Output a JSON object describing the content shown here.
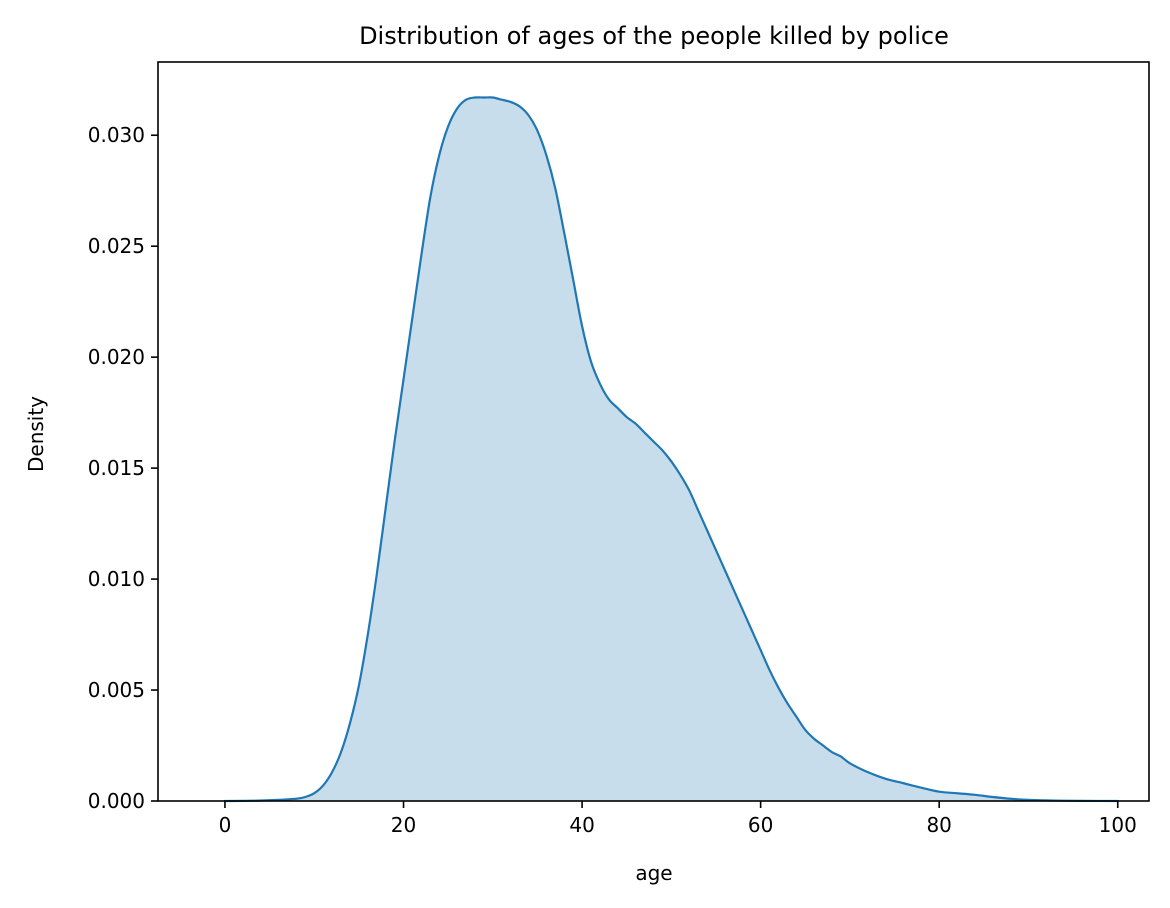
{
  "chart_data": {
    "type": "area",
    "title": "Distribution of ages of the people killed by police",
    "xlabel": "age",
    "ylabel": "Density",
    "xlim": [
      -7.5,
      103.5
    ],
    "ylim": [
      0,
      0.0333
    ],
    "xticks": [
      0,
      20,
      40,
      60,
      80,
      100
    ],
    "xtick_labels": [
      "0",
      "20",
      "40",
      "60",
      "80",
      "100"
    ],
    "yticks": [
      0,
      0.005,
      0.01,
      0.015,
      0.02,
      0.025,
      0.03
    ],
    "ytick_labels": [
      "0.000",
      "0.005",
      "0.010",
      "0.015",
      "0.020",
      "0.025",
      "0.030"
    ],
    "grid": false,
    "colors": {
      "line": "#1f77b4",
      "fill": "#1f77b4",
      "fill_opacity": 0.25
    },
    "series": [
      {
        "x": [
          0,
          3,
          6,
          8,
          9,
          10,
          11,
          12,
          13,
          14,
          15,
          16,
          17,
          18,
          19,
          20,
          21,
          22,
          23,
          24,
          25,
          26,
          27,
          28,
          29,
          30,
          31,
          32,
          33,
          34,
          35,
          36,
          37,
          38,
          39,
          40,
          41,
          42,
          43,
          44,
          45,
          46,
          47,
          48,
          49,
          50,
          51,
          52,
          53,
          54,
          55,
          56,
          57,
          58,
          59,
          60,
          61,
          62,
          63,
          64,
          65,
          66,
          67,
          68,
          69,
          70,
          72,
          74,
          76,
          78,
          80,
          82,
          84,
          86,
          88,
          90,
          93,
          96,
          100
        ],
        "values": [
          0.0,
          1e-05,
          5e-05,
          0.0001,
          0.00018,
          0.00035,
          0.0007,
          0.0013,
          0.0022,
          0.0035,
          0.0052,
          0.0075,
          0.0102,
          0.0132,
          0.0162,
          0.019,
          0.0218,
          0.0246,
          0.0272,
          0.0291,
          0.0304,
          0.0312,
          0.0316,
          0.0317,
          0.0317,
          0.0317,
          0.0316,
          0.0315,
          0.0313,
          0.0309,
          0.0302,
          0.0291,
          0.0276,
          0.0256,
          0.0235,
          0.0214,
          0.0198,
          0.0188,
          0.0181,
          0.0177,
          0.0173,
          0.017,
          0.0166,
          0.0162,
          0.0158,
          0.0153,
          0.0147,
          0.014,
          0.0131,
          0.0122,
          0.0113,
          0.0104,
          0.0095,
          0.0086,
          0.0077,
          0.0068,
          0.0059,
          0.0051,
          0.0044,
          0.0038,
          0.0032,
          0.0028,
          0.0025,
          0.0022,
          0.002,
          0.0017,
          0.0013,
          0.001,
          0.0008,
          0.0006,
          0.00042,
          0.00035,
          0.00028,
          0.00018,
          0.0001,
          5e-05,
          2e-05,
          5e-06,
          0.0
        ]
      }
    ]
  }
}
